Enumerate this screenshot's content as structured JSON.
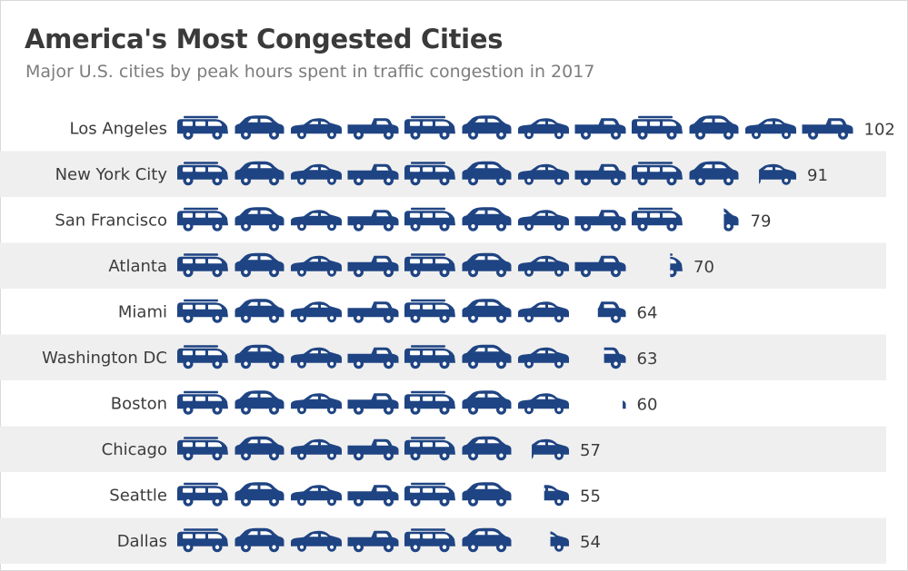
{
  "header": {
    "title": "America's Most Congested Cities",
    "subtitle": "Major U.S. cities by peak hours spent in traffic congestion in 2017"
  },
  "colors": {
    "car": "#1f4483",
    "band": "#efefef",
    "text": "#3c3c3c"
  },
  "icons": [
    "wagon-car-icon",
    "hatchback-car-icon",
    "sedan-car-icon",
    "pickup-truck-icon"
  ],
  "chart_data": {
    "type": "bar",
    "encoding": "pictogram",
    "unit_per_icon": 8.5,
    "categories": [
      "Los Angeles",
      "New York City",
      "San Francisco",
      "Atlanta",
      "Miami",
      "Washington DC",
      "Boston",
      "Chicago",
      "Seattle",
      "Dallas"
    ],
    "values": [
      102,
      91,
      79,
      70,
      64,
      63,
      60,
      57,
      55,
      54
    ],
    "title": "America's Most Congested Cities",
    "subtitle": "Major U.S. cities by peak hours spent in traffic congestion in 2017"
  }
}
